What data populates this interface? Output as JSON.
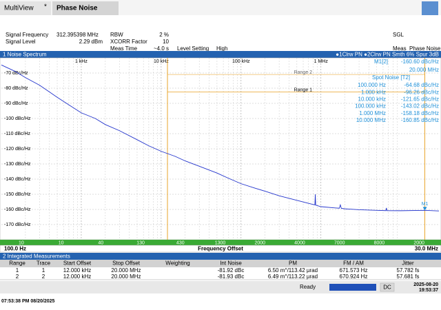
{
  "title_bar": {
    "tab1": "MultiView",
    "tab2": "Phase Noise"
  },
  "header": {
    "signal_frequency_label": "Signal Frequency",
    "signal_frequency": "312.395398 MHz",
    "signal_level_label": "Signal Level",
    "signal_level": "2.29 dBm",
    "rbw_label": "RBW",
    "rbw": "2 %",
    "xcorr_label": "XCORR Factor",
    "xcorr": "10",
    "meas_time_label": "Meas Time",
    "meas_time": "~4.0 s",
    "level_setting_label": "Level Setting",
    "level_setting": "High",
    "sweep_mode": "SGL",
    "meas_label": "Meas",
    "meas": "Phase Noise"
  },
  "spectrum": {
    "title": "1 Noise Spectrum",
    "traces_info": "●1Clrw PN ●2Clrw PN Smth 6% Spur 3dB",
    "log_x": true,
    "xlim": [
      100,
      30000000
    ],
    "ylim": [
      -180,
      -60
    ],
    "xticks": [
      {
        "value": 1000,
        "label": "1 kHz"
      },
      {
        "value": 10000,
        "label": "10 kHz"
      },
      {
        "value": 100000,
        "label": "100 kHz"
      },
      {
        "value": 1000000,
        "label": "1 MHz"
      }
    ],
    "yticks": [
      {
        "value": -70,
        "label": "-70 dBc/Hz"
      },
      {
        "value": -80,
        "label": "-80 dBc/Hz"
      },
      {
        "value": -90,
        "label": "-90 dBc/Hz"
      },
      {
        "value": -100,
        "label": "-100 dBc/Hz"
      },
      {
        "value": -110,
        "label": "-110 dBc/Hz"
      },
      {
        "value": -120,
        "label": "-120 dBc/Hz"
      },
      {
        "value": -130,
        "label": "-130 dBc/Hz"
      },
      {
        "value": -140,
        "label": "-140 dBc/Hz"
      },
      {
        "value": -150,
        "label": "-150 dBc/Hz"
      },
      {
        "value": -160,
        "label": "-160 dBc/Hz"
      },
      {
        "value": -170,
        "label": "-170 dBc/Hz"
      }
    ],
    "grid": true,
    "trace_color": "#2233cc",
    "range_color": "#e8a020",
    "x": [
      100,
      150,
      200,
      300,
      500,
      700,
      1000,
      1500,
      2000,
      3000,
      5000,
      7000,
      10000,
      15000,
      20000,
      30000,
      50000,
      70000,
      100000,
      150000,
      200000,
      300000,
      500000,
      700000,
      840000,
      850000,
      860000,
      1000000,
      1500000,
      1700000,
      1750000,
      1800000,
      2000000,
      3000000,
      5000000,
      6500000,
      6600000,
      6700000,
      10000000,
      20000000,
      30000000
    ],
    "values": [
      -64.68,
      -69,
      -73,
      -78,
      -86,
      -91,
      -96.26,
      -100,
      -104,
      -108,
      -114,
      -118,
      -121.65,
      -125,
      -128,
      -131.5,
      -136,
      -139.5,
      -143.02,
      -146,
      -148,
      -151,
      -154,
      -156,
      -157,
      -150,
      -157.2,
      -158.18,
      -159,
      -159.2,
      -157,
      -159.3,
      -159.6,
      -160.2,
      -160.6,
      -160.8,
      -159,
      -160.8,
      -160.85,
      -160.6,
      -161
    ],
    "ranges": [
      {
        "label": "Range 2",
        "start": 12000,
        "stop": 20000000,
        "level": -71
      },
      {
        "label": "Range 1",
        "start": 12000,
        "stop": 20000000,
        "level": -82.5
      }
    ],
    "marker": {
      "label": "M1",
      "readout": "M1[2]",
      "level_text": "-160.60 dBc/Hz",
      "freq_text": "20.000 MHz",
      "x": 20000000,
      "value": -160.6
    },
    "spot_noise": {
      "title": "Spot Noise [T2]",
      "rows": [
        {
          "offset": "100.000 Hz",
          "level": "-64.68 dBc/Hz"
        },
        {
          "offset": "1.000 kHz",
          "level": "-96.26 dBc/Hz"
        },
        {
          "offset": "10.000 kHz",
          "level": "-121.65 dBc/Hz"
        },
        {
          "offset": "100.000 kHz",
          "level": "-143.02 dBc/Hz"
        },
        {
          "offset": "1.000 MHz",
          "level": "-158.18 dBc/Hz"
        },
        {
          "offset": "10.000 MHz",
          "level": "-160.85 dBc/Hz"
        }
      ]
    },
    "segment_points": [
      "10",
      "10",
      "40",
      "130",
      "430",
      "1300",
      "2000",
      "4000",
      "7000",
      "8000",
      "2000"
    ],
    "start": "100.0 Hz",
    "axis_label": "Frequency Offset",
    "stop": "30.0 MHz"
  },
  "integrated": {
    "title": "2 Integrated Measurements",
    "columns": [
      "Range",
      "Trace",
      "Start Offset",
      "Stop Offset",
      "Weighting",
      "Int Noise",
      "PM",
      "FM / AM",
      "Jitter"
    ],
    "rows": [
      {
        "range": "1",
        "trace": "1",
        "start": "12.000 kHz",
        "stop": "20.000 MHz",
        "int_noise": "-81.92 dBc",
        "pm": "6.50 m°/113.42 µrad",
        "fm_am": "671.573 Hz",
        "jitter": "57.782 fs"
      },
      {
        "range": "2",
        "trace": "2",
        "start": "12.000 kHz",
        "stop": "20.000 MHz",
        "int_noise": "-81.93 dBc",
        "pm": "6.49 m°/113.22 µrad",
        "fm_am": "670.924 Hz",
        "jitter": "57.681 fs"
      }
    ]
  },
  "status": {
    "state": "Ready",
    "coupling": "DC",
    "date": "2025-08-20",
    "time": "19:53:37"
  },
  "footer": {
    "timestamp": "07:53:38 PM   08/20/2025"
  }
}
